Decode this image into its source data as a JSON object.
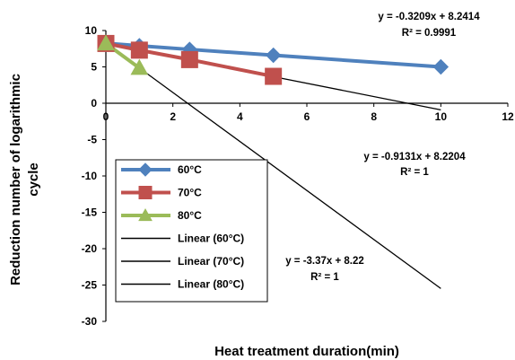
{
  "chart_data": {
    "type": "scatter",
    "xlabel": "Heat treatment duration(min)",
    "ylabel_line1": "Reduction number of logarithmic",
    "ylabel_line2": "cycle",
    "xlim": [
      0,
      12
    ],
    "ylim": [
      -30,
      10
    ],
    "xticks": [
      "0",
      "2",
      "4",
      "6",
      "8",
      "10",
      "12"
    ],
    "yticks": [
      "10",
      "5",
      "0",
      "-5",
      "-10",
      "-15",
      "-20",
      "-25",
      "-30"
    ],
    "grid": false,
    "legend_position": "left-middle",
    "series": [
      {
        "name": "60°C",
        "color": "#4f81bd",
        "marker": "diamond",
        "x": [
          0,
          1,
          2.5,
          5,
          10
        ],
        "y": [
          8.24,
          7.9,
          7.4,
          6.6,
          5.0
        ]
      },
      {
        "name": "70°C",
        "color": "#c0504d",
        "marker": "square",
        "x": [
          0,
          1,
          2.5,
          5
        ],
        "y": [
          8.22,
          7.3,
          6.0,
          3.7
        ]
      },
      {
        "name": "80°C",
        "color": "#9bbb59",
        "marker": "triangle",
        "x": [
          0,
          1
        ],
        "y": [
          8.22,
          4.85
        ]
      }
    ],
    "trendlines": [
      {
        "name": "Linear (60°C)",
        "slope": -0.3209,
        "intercept": 8.2414,
        "x_range": [
          0,
          10
        ],
        "equation": "y = -0.3209x + 8.2414",
        "r2": "R² = 0.9991"
      },
      {
        "name": "Linear (70°C)",
        "slope": -0.9131,
        "intercept": 8.2204,
        "x_range": [
          0,
          10
        ],
        "equation": "y = -0.9131x + 8.2204",
        "r2": "R² = 1"
      },
      {
        "name": "Linear (80°C)",
        "slope": -3.37,
        "intercept": 8.22,
        "x_range": [
          0,
          10
        ],
        "equation": "y = -3.37x + 8.22",
        "r2": "R² = 1"
      }
    ]
  }
}
